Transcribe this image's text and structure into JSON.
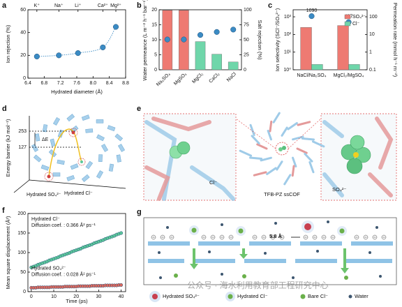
{
  "chart_data": [
    {
      "type": "scatter",
      "label": "a",
      "xlabel": "Hydrated diameter (Å)",
      "ylabel": "Ion rejection (%)",
      "xlim": [
        6.4,
        8.8
      ],
      "xticks": [
        6.4,
        6.8,
        7.2,
        7.6,
        {
          "value": 8,
          "label": "8.0"
        },
        8.4,
        8.8
      ],
      "ylim": [
        0,
        60
      ],
      "yticks": [
        0,
        20,
        40,
        60
      ],
      "trend": "dotted",
      "series": [
        {
          "color": "#3b8bc4",
          "x": [
            6.62,
            7.16,
            7.63,
            8.24,
            8.56
          ],
          "values": [
            19,
            20,
            22,
            27,
            45
          ],
          "point_labels": [
            "K⁺",
            "Na⁺",
            "Li⁺",
            "Ca²⁺",
            "Mg²⁺"
          ]
        }
      ]
    },
    {
      "type": "bar",
      "label": "b",
      "categories": [
        "Na₂SO₄",
        "MgSO₄",
        "MgCl₂",
        "CaCl₂",
        "NaCl"
      ],
      "ylabel": "Water permeance (L m⁻² h⁻¹ bar⁻¹)",
      "y2label": "Salt rejection (%)",
      "ylim": [
        0,
        20
      ],
      "yticks": [
        0,
        5,
        10,
        15,
        20
      ],
      "y2lim": [
        0,
        100
      ],
      "y2ticks": [
        0,
        25,
        50,
        75,
        100
      ],
      "series": [
        {
          "type": "bar",
          "axis": "y2",
          "colors": [
            "#ee7a72",
            "#ee7a72",
            "#6fd6aa",
            "#6fd6aa",
            "#6fd6aa"
          ],
          "values": [
            99,
            99,
            47,
            26,
            13
          ]
        },
        {
          "type": "scatter",
          "color": "#3b8bc4",
          "values": [
            10.1,
            10.1,
            11.6,
            12.6,
            13.4
          ]
        }
      ]
    },
    {
      "type": "bar",
      "label": "c",
      "categories": [
        "NaCl/Na₂SO₄",
        "MgCl₂/MgSO₄"
      ],
      "ylabel": "Ion selectivity (SCl⁻/SO₄²⁻)",
      "y2label": "Permeation rate (mmol h⁻¹ m⁻²)",
      "ylog": true,
      "ylim": [
        1,
        2500
      ],
      "yticks": [
        {
          "value": 1,
          "label": "10⁰"
        },
        {
          "value": 10,
          "label": "10¹"
        },
        {
          "value": 100,
          "label": "10²"
        },
        {
          "value": 1000,
          "label": "10³"
        }
      ],
      "y2log": true,
      "y2lim": [
        0.1,
        250
      ],
      "y2ticks": [
        0.1,
        1,
        10,
        100
      ],
      "legend": "upper right",
      "series": [
        {
          "type": "bar",
          "name": "SO₄²⁻",
          "axis": "y2",
          "color": "#ee7a72",
          "values": [
            25,
            32
          ]
        },
        {
          "type": "bar",
          "name": "Cl⁻",
          "axis": "y2",
          "color": "#6fd6aa",
          "values": [
            0.2,
            0.2
          ]
        },
        {
          "type": "scatter",
          "color": "#3b8bc4",
          "values": [
            1090,
            497
          ],
          "show_values": true
        }
      ]
    },
    {
      "type": "scatter",
      "label": "f",
      "xlabel": "Time (ps)",
      "ylabel": "Mean square displacement (Å²)",
      "xlim": [
        -1.5,
        42
      ],
      "xticks": [
        0,
        10,
        20,
        30,
        40
      ],
      "ylim": [
        0,
        200
      ],
      "yticks": [
        0,
        50,
        100,
        150,
        200
      ],
      "legend": "inline",
      "x": [
        0,
        1,
        2,
        3,
        4,
        5,
        6,
        7,
        8,
        9,
        10,
        11,
        12,
        13,
        14,
        15,
        16,
        17,
        18,
        19,
        20,
        21,
        22,
        23,
        24,
        25,
        26,
        27,
        28,
        29,
        30,
        31,
        32,
        33,
        34,
        35,
        36,
        37,
        38,
        39,
        40
      ],
      "series": [
        {
          "name": "Hydrated Cl⁻",
          "annotation": "Diffusion coef. : 0.366 Å² ps⁻¹",
          "color": "#5cc79a",
          "values": [
            62,
            64,
            66,
            69,
            71,
            73,
            75,
            77,
            80,
            82,
            84,
            86,
            88,
            91,
            93,
            95,
            97,
            99,
            102,
            104,
            106,
            108,
            110,
            113,
            115,
            117,
            119,
            121,
            124,
            126,
            128,
            130,
            132,
            135,
            137,
            139,
            141,
            143,
            146,
            148,
            150
          ]
        },
        {
          "name": "Hydrated SO₄²⁻",
          "annotation": "Diffusion coef. : 0.028 Å² ps⁻¹",
          "color": "#e06a5e",
          "values": [
            10,
            10,
            10,
            11,
            11,
            11,
            11,
            11,
            11,
            12,
            12,
            12,
            12,
            12,
            12,
            13,
            13,
            13,
            13,
            13,
            13,
            14,
            14,
            14,
            14,
            14,
            14,
            15,
            15,
            15,
            15,
            15,
            15,
            16,
            16,
            16,
            16,
            16,
            16,
            17,
            17
          ]
        }
      ]
    }
  ],
  "figure": {
    "d": {
      "label": "d",
      "ylabel": "Energy barrier (kJ mol⁻¹)",
      "ticks": [
        253,
        127
      ],
      "delta": "ΔE",
      "ions": [
        "Hydrated SO₄²⁻",
        "Hydrated Cl⁻"
      ]
    },
    "e": {
      "label": "e",
      "texts": [
        "Cl⁻",
        "TFB-PZ ssCOF",
        "SO₄²⁻"
      ]
    },
    "g": {
      "label": "g",
      "spacing": "5.8 Å",
      "legend": [
        "Hydrated SO₄²⁻",
        "Hydrated Cl⁻",
        "Bare Cl⁻",
        "Water"
      ]
    },
    "watermark": "公众号 · 海水利用教育部工程研究中心"
  }
}
